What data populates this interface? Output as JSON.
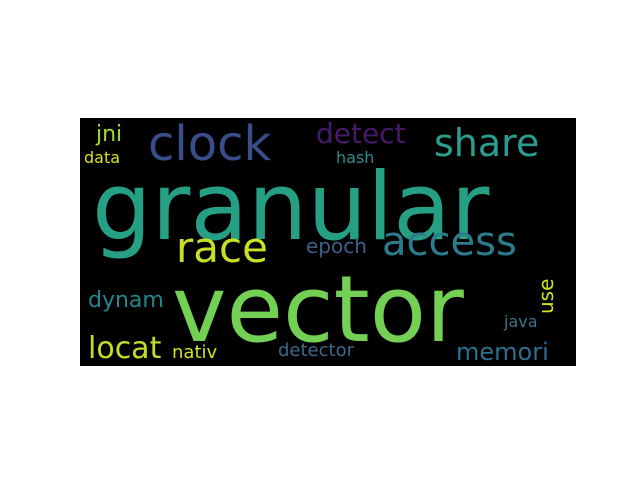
{
  "wordcloud": {
    "background": "#000000",
    "words": [
      {
        "text": "granular",
        "color": "#26a084"
      },
      {
        "text": "vector",
        "color": "#73d055"
      },
      {
        "text": "clock",
        "color": "#3b4c8a"
      },
      {
        "text": "share",
        "color": "#2a9d8f"
      },
      {
        "text": "access",
        "color": "#2d7c8e"
      },
      {
        "text": "race",
        "color": "#c8df26"
      },
      {
        "text": "detect",
        "color": "#48186a"
      },
      {
        "text": "memori",
        "color": "#2e6f8e"
      },
      {
        "text": "locat",
        "color": "#c1df24"
      },
      {
        "text": "dynam",
        "color": "#25858e"
      },
      {
        "text": "epoch",
        "color": "#3e5f8a"
      },
      {
        "text": "jni",
        "color": "#a2da37"
      },
      {
        "text": "data",
        "color": "#d8e219"
      },
      {
        "text": "hash",
        "color": "#2c8e8c"
      },
      {
        "text": "use",
        "color": "#cfe11c"
      },
      {
        "text": "java",
        "color": "#3b748a"
      },
      {
        "text": "nativ",
        "color": "#d2e21b"
      },
      {
        "text": "detector",
        "color": "#3c6a8a"
      }
    ]
  }
}
